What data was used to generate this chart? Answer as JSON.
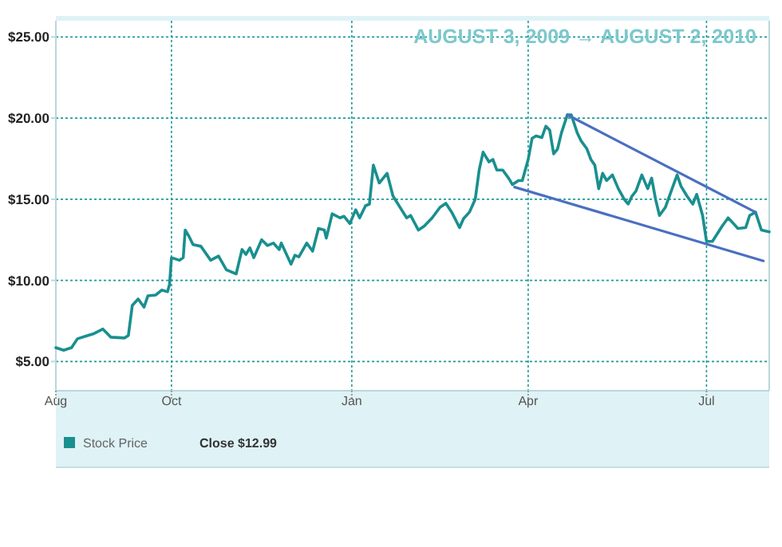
{
  "chart_data": {
    "type": "line",
    "xlim": [
      "2009-08-03",
      "2010-08-02"
    ],
    "ylim": [
      3.2,
      26
    ],
    "xticks": [
      {
        "value": "2009-08-03",
        "label": "Aug"
      },
      {
        "value": "2009-10-01",
        "label": "Oct"
      },
      {
        "value": "2010-01-01",
        "label": "Jan"
      },
      {
        "value": "2010-04-01",
        "label": "Apr"
      },
      {
        "value": "2010-07-01",
        "label": "Jul"
      }
    ],
    "yticks": [
      {
        "value": 5,
        "label": "$5.00"
      },
      {
        "value": 10,
        "label": "$10.00"
      },
      {
        "value": 15,
        "label": "$15.00"
      },
      {
        "value": 20,
        "label": "$20.00"
      },
      {
        "value": 25,
        "label": "$25.00"
      }
    ],
    "grid": true,
    "legend": "bottom left",
    "line_style": "solid",
    "marker": "none",
    "annotations": [
      "AUGUST 3, 2009 → AUGUST 2, 2010",
      "Close $12.99"
    ],
    "series": [
      {
        "name": "Stock Price",
        "color": "#1a8f8f",
        "x": [
          "2009-08-03",
          "2009-08-07",
          "2009-08-11",
          "2009-08-14",
          "2009-08-18",
          "2009-08-22",
          "2009-08-27",
          "2009-08-31",
          "2009-09-07",
          "2009-09-09",
          "2009-09-11",
          "2009-09-14",
          "2009-09-17",
          "2009-09-19",
          "2009-09-23",
          "2009-09-26",
          "2009-09-29",
          "2009-09-30",
          "2009-10-01",
          "2009-10-05",
          "2009-10-07",
          "2009-10-08",
          "2009-10-10",
          "2009-10-12",
          "2009-10-16",
          "2009-10-21",
          "2009-10-25",
          "2009-10-29",
          "2009-11-03",
          "2009-11-06",
          "2009-11-08",
          "2009-11-10",
          "2009-11-12",
          "2009-11-16",
          "2009-11-19",
          "2009-11-22",
          "2009-11-25",
          "2009-11-26",
          "2009-12-01",
          "2009-12-03",
          "2009-12-05",
          "2009-12-09",
          "2009-12-12",
          "2009-12-15",
          "2009-12-18",
          "2009-12-19",
          "2009-12-22",
          "2009-12-26",
          "2009-12-28",
          "2009-12-31",
          "2010-01-03",
          "2010-01-05",
          "2010-01-08",
          "2010-01-10",
          "2010-01-12",
          "2010-01-15",
          "2010-01-19",
          "2010-01-22",
          "2010-01-29",
          "2010-01-31",
          "2010-02-04",
          "2010-02-07",
          "2010-02-11",
          "2010-02-15",
          "2010-02-18",
          "2010-02-21",
          "2010-02-25",
          "2010-02-27",
          "2010-03-02",
          "2010-03-05",
          "2010-03-07",
          "2010-03-09",
          "2010-03-12",
          "2010-03-14",
          "2010-03-16",
          "2010-03-19",
          "2010-03-22",
          "2010-03-24",
          "2010-03-27",
          "2010-03-29",
          "2010-04-01",
          "2010-04-03",
          "2010-04-05",
          "2010-04-08",
          "2010-04-10",
          "2010-04-12",
          "2010-04-14",
          "2010-04-16",
          "2010-04-18",
          "2010-04-21",
          "2010-04-23",
          "2010-04-26",
          "2010-04-28",
          "2010-05-01",
          "2010-05-03",
          "2010-05-05",
          "2010-05-07",
          "2010-05-09",
          "2010-05-11",
          "2010-05-14",
          "2010-05-17",
          "2010-05-20",
          "2010-05-22",
          "2010-05-24",
          "2010-05-26",
          "2010-05-29",
          "2010-06-01",
          "2010-06-03",
          "2010-06-05",
          "2010-06-07",
          "2010-06-10",
          "2010-06-13",
          "2010-06-16",
          "2010-06-18",
          "2010-06-21",
          "2010-06-24",
          "2010-06-26",
          "2010-06-29",
          "2010-07-01",
          "2010-07-04",
          "2010-07-09",
          "2010-07-12",
          "2010-07-14",
          "2010-07-17",
          "2010-07-21",
          "2010-07-23",
          "2010-07-26",
          "2010-07-29",
          "2010-08-02"
        ],
        "values": [
          5.85,
          5.69,
          5.85,
          6.4,
          6.55,
          6.7,
          7.0,
          6.5,
          6.45,
          6.6,
          8.46,
          8.85,
          8.35,
          9.05,
          9.1,
          9.4,
          9.3,
          9.75,
          11.4,
          11.24,
          11.4,
          13.1,
          12.7,
          12.2,
          12.1,
          11.24,
          11.5,
          10.65,
          10.4,
          11.9,
          11.6,
          12.0,
          11.4,
          12.5,
          12.15,
          12.3,
          11.9,
          12.3,
          11.0,
          11.55,
          11.45,
          12.3,
          11.8,
          13.2,
          13.1,
          12.6,
          14.1,
          13.85,
          13.95,
          13.5,
          14.35,
          13.85,
          14.6,
          14.7,
          17.1,
          16.0,
          16.6,
          15.2,
          13.85,
          14.0,
          13.1,
          13.35,
          13.85,
          14.5,
          14.75,
          14.2,
          13.25,
          13.8,
          14.2,
          15.0,
          16.8,
          17.9,
          17.3,
          17.45,
          16.8,
          16.8,
          16.3,
          15.9,
          16.15,
          16.15,
          17.45,
          18.75,
          18.9,
          18.8,
          19.5,
          19.25,
          17.8,
          18.1,
          19.1,
          20.2,
          20.2,
          19.1,
          18.6,
          18.1,
          17.45,
          17.1,
          15.65,
          16.6,
          16.15,
          16.5,
          15.65,
          15.0,
          14.7,
          15.2,
          15.5,
          16.5,
          15.65,
          16.3,
          15.0,
          14.0,
          14.5,
          15.5,
          16.5,
          15.8,
          15.2,
          14.7,
          15.3,
          14.0,
          12.4,
          12.4,
          13.35,
          13.85,
          13.6,
          13.2,
          13.25,
          14.0,
          14.2,
          13.1,
          12.99
        ]
      },
      {
        "type": "line",
        "color": "#4a6fc0",
        "x": [
          "2010-04-21",
          "2010-07-26"
        ],
        "values": [
          20.2,
          14.2
        ]
      },
      {
        "type": "line",
        "color": "#4a6fc0",
        "x": [
          "2010-03-25",
          "2010-07-30"
        ],
        "values": [
          15.75,
          11.2
        ]
      }
    ]
  }
}
